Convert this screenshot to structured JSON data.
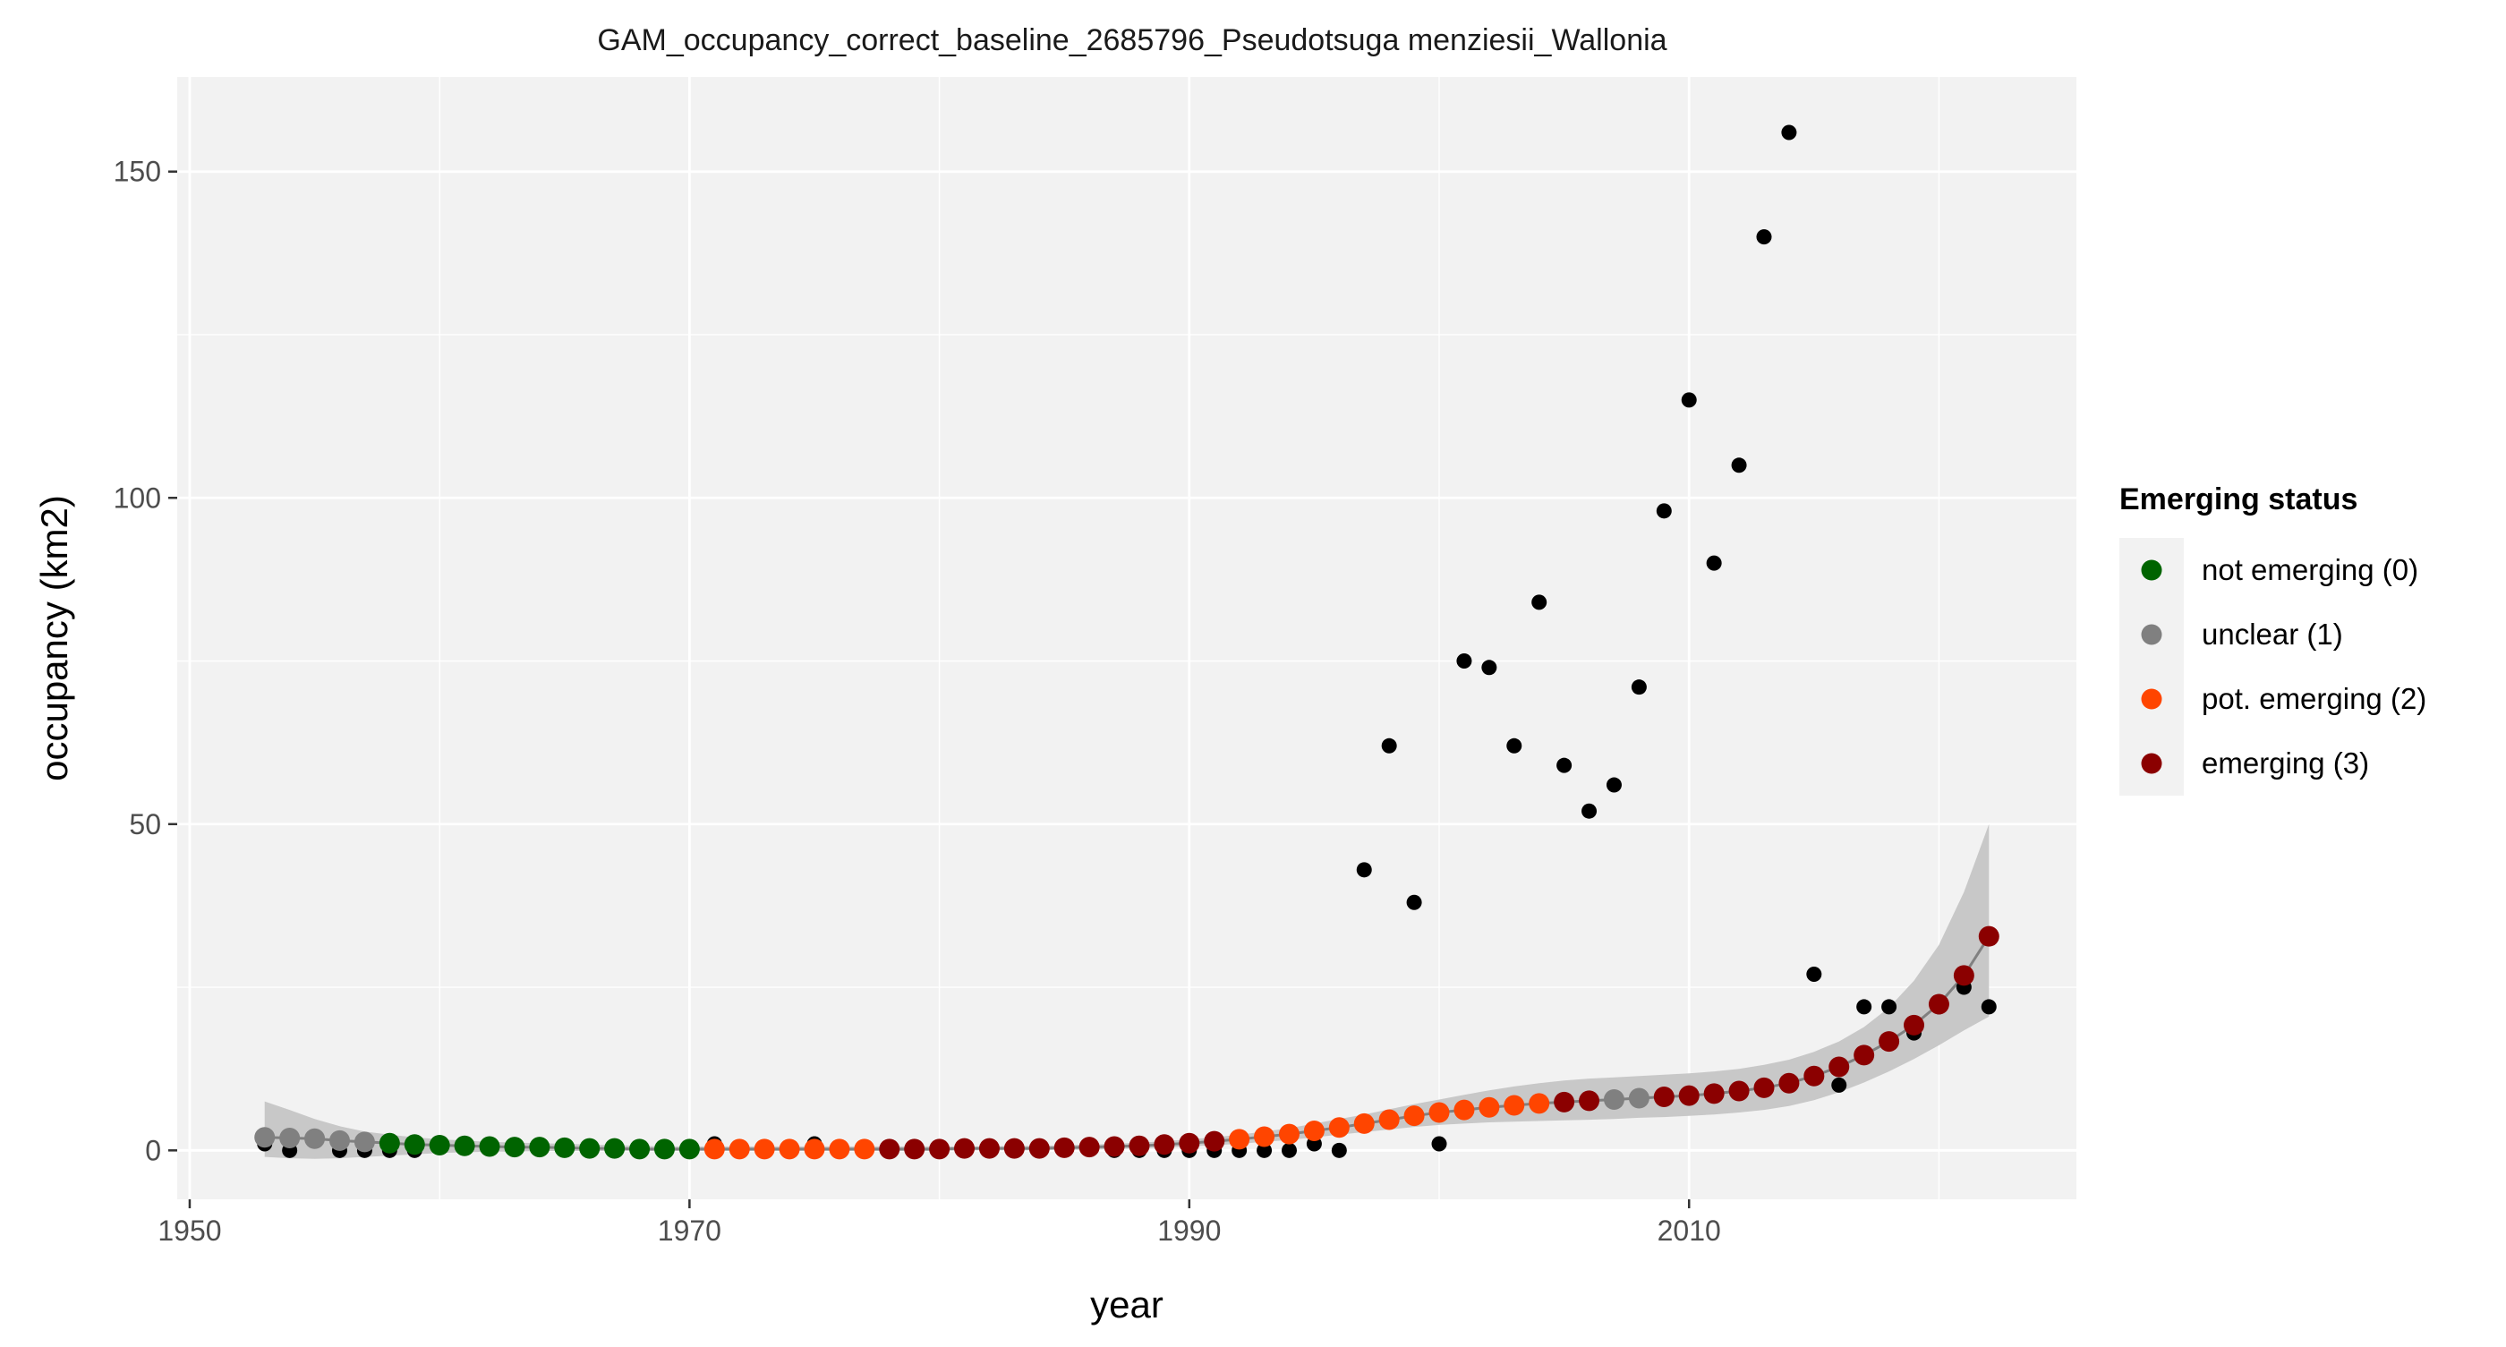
{
  "chart_data": {
    "type": "scatter",
    "title": "GAM_occupancy_correct_baseline_2685796_Pseudotsuga menziesii_Wallonia",
    "xlabel": "year",
    "ylabel": "occupancy (km2)",
    "xlim": [
      1949.5,
      2025.5
    ],
    "ylim": [
      -7.5,
      164.5
    ],
    "x_ticks": [
      1950,
      1970,
      1990,
      2010
    ],
    "y_ticks": [
      0,
      50,
      100,
      150
    ],
    "grid": true,
    "legend": {
      "title": "Emerging status",
      "placement": "right",
      "items": [
        {
          "label": "not emerging (0)",
          "color": "#006400"
        },
        {
          "label": "unclear (1)",
          "color": "#808080"
        },
        {
          "label": "pot. emerging (2)",
          "color": "#FF4500"
        },
        {
          "label": "emerging (3)",
          "color": "#8B0000"
        }
      ]
    },
    "colors": {
      "observed": "#000000",
      "ribbon": "#c8c8c8",
      "fit_line": "#808080",
      "panel_background": "#f2f2f2",
      "grid": "#ffffff"
    },
    "observed": {
      "x": [
        1953,
        1954,
        1955,
        1956,
        1957,
        1958,
        1959,
        1971,
        1975,
        1987,
        1988,
        1989,
        1990,
        1991,
        1992,
        1993,
        1994,
        1995,
        1996,
        1997,
        1998,
        1999,
        2000,
        2001,
        2002,
        2003,
        2004,
        2005,
        2006,
        2007,
        2008,
        2009,
        2010,
        2011,
        2012,
        2013,
        2014,
        2015,
        2016,
        2017,
        2018,
        2019,
        2020,
        2021,
        2022
      ],
      "y": [
        1,
        0,
        2,
        0,
        0,
        0,
        0,
        1,
        1,
        0,
        0,
        0,
        0,
        0,
        0,
        0,
        0,
        1,
        0,
        43,
        62,
        38,
        1,
        75,
        74,
        62,
        84,
        59,
        52,
        56,
        71,
        98,
        115,
        90,
        105,
        140,
        156,
        27,
        10,
        22,
        22,
        18,
        22,
        25,
        22
      ]
    },
    "fit": {
      "x": [
        1953,
        1954,
        1955,
        1956,
        1957,
        1958,
        1959,
        1960,
        1961,
        1962,
        1963,
        1964,
        1965,
        1966,
        1967,
        1968,
        1969,
        1970,
        1971,
        1972,
        1973,
        1974,
        1975,
        1976,
        1977,
        1978,
        1979,
        1980,
        1981,
        1982,
        1983,
        1984,
        1985,
        1986,
        1987,
        1988,
        1989,
        1990,
        1991,
        1992,
        1993,
        1994,
        1995,
        1996,
        1997,
        1998,
        1999,
        2000,
        2001,
        2002,
        2003,
        2004,
        2005,
        2006,
        2007,
        2008,
        2009,
        2010,
        2011,
        2012,
        2013,
        2014,
        2015,
        2016,
        2017,
        2018,
        2019,
        2020,
        2021,
        2022
      ],
      "y": [
        2.0,
        1.9,
        1.8,
        1.5,
        1.3,
        1.1,
        0.9,
        0.8,
        0.7,
        0.6,
        0.5,
        0.5,
        0.4,
        0.3,
        0.3,
        0.2,
        0.2,
        0.2,
        0.2,
        0.2,
        0.2,
        0.2,
        0.2,
        0.2,
        0.2,
        0.2,
        0.2,
        0.2,
        0.3,
        0.3,
        0.3,
        0.3,
        0.4,
        0.5,
        0.6,
        0.7,
        0.9,
        1.1,
        1.4,
        1.7,
        2.1,
        2.5,
        3.0,
        3.5,
        4.1,
        4.7,
        5.3,
        5.8,
        6.2,
        6.6,
        6.9,
        7.2,
        7.4,
        7.6,
        7.8,
        8.0,
        8.2,
        8.4,
        8.7,
        9.1,
        9.6,
        10.3,
        11.4,
        12.8,
        14.6,
        16.7,
        19.2,
        22.4,
        26.8,
        32.8
      ],
      "status": [
        1,
        1,
        1,
        1,
        1,
        0,
        0,
        0,
        0,
        0,
        0,
        0,
        0,
        0,
        0,
        0,
        0,
        0,
        2,
        2,
        2,
        2,
        2,
        2,
        2,
        3,
        3,
        3,
        3,
        3,
        3,
        3,
        3,
        3,
        3,
        3,
        3,
        3,
        3,
        2,
        2,
        2,
        2,
        2,
        2,
        2,
        2,
        2,
        2,
        2,
        2,
        2,
        3,
        3,
        1,
        1,
        3,
        3,
        3,
        3,
        3,
        3,
        3,
        3,
        3,
        3,
        3,
        3,
        3,
        3
      ],
      "lower": [
        -1.0,
        -1.2,
        -1.3,
        -1.2,
        -1.0,
        -0.8,
        -0.6,
        -0.4,
        -0.3,
        -0.2,
        -0.2,
        -0.1,
        -0.1,
        -0.1,
        -0.1,
        -0.1,
        -0.1,
        -0.1,
        -0.1,
        -0.1,
        -0.1,
        -0.1,
        -0.1,
        -0.1,
        -0.1,
        -0.1,
        -0.1,
        -0.1,
        0.0,
        0.0,
        0.0,
        0.0,
        0.1,
        0.1,
        0.2,
        0.3,
        0.4,
        0.6,
        0.8,
        1.0,
        1.3,
        1.6,
        2.0,
        2.4,
        2.8,
        3.2,
        3.6,
        3.9,
        4.1,
        4.3,
        4.4,
        4.5,
        4.6,
        4.7,
        4.8,
        5.0,
        5.1,
        5.3,
        5.5,
        5.8,
        6.2,
        6.8,
        7.7,
        8.9,
        10.4,
        12.1,
        14.0,
        16.1,
        18.4,
        20.5
      ],
      "upper": [
        7.5,
        6.2,
        4.8,
        3.7,
        2.9,
        2.4,
        2.0,
        1.7,
        1.5,
        1.3,
        1.2,
        1.1,
        1.0,
        0.9,
        0.8,
        0.7,
        0.6,
        0.6,
        0.6,
        0.6,
        0.6,
        0.6,
        0.6,
        0.6,
        0.6,
        0.6,
        0.6,
        0.6,
        0.6,
        0.6,
        0.7,
        0.7,
        0.8,
        0.9,
        1.0,
        1.2,
        1.4,
        1.7,
        2.0,
        2.4,
        2.9,
        3.4,
        4.1,
        4.8,
        5.5,
        6.3,
        7.1,
        7.8,
        8.5,
        9.2,
        9.8,
        10.3,
        10.7,
        11.0,
        11.2,
        11.4,
        11.6,
        11.8,
        12.1,
        12.5,
        13.1,
        13.9,
        15.1,
        16.7,
        18.9,
        21.9,
        26.0,
        31.5,
        39.6,
        50.0
      ]
    }
  }
}
